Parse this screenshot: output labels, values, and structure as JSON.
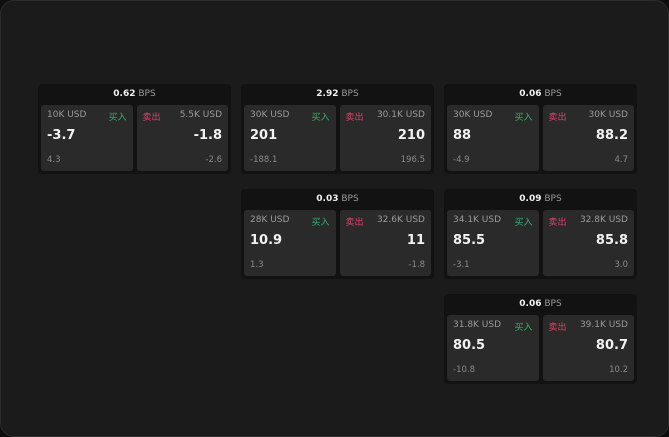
{
  "colors": {
    "buy": "#2fb36b",
    "sell": "#e0406a"
  },
  "buy_label": "买入",
  "sell_label": "卖出",
  "unit": "BPS",
  "cards": [
    {
      "spread": "0.62",
      "bid_size": "10K USD",
      "bid": "-3.7",
      "bid_chg": "4.3",
      "ask_size": "5.5K USD",
      "ask": "-1.8",
      "ask_chg": "-2.6"
    },
    {
      "spread": "2.92",
      "bid_size": "30K USD",
      "bid": "201",
      "bid_chg": "-188.1",
      "ask_size": "30.1K USD",
      "ask": "210",
      "ask_chg": "196.5"
    },
    {
      "spread": "0.06",
      "bid_size": "30K USD",
      "bid": "88",
      "bid_chg": "-4.9",
      "ask_size": "30K USD",
      "ask": "88.2",
      "ask_chg": "4.7"
    },
    {
      "spread": "0.03",
      "bid_size": "28K USD",
      "bid": "10.9",
      "bid_chg": "1.3",
      "ask_size": "32.6K USD",
      "ask": "11",
      "ask_chg": "-1.8"
    },
    {
      "spread": "0.09",
      "bid_size": "34.1K USD",
      "bid": "85.5",
      "bid_chg": "-3.1",
      "ask_size": "32.8K USD",
      "ask": "85.8",
      "ask_chg": "3.0"
    },
    {
      "spread": "0.06",
      "bid_size": "31.8K USD",
      "bid": "80.5",
      "bid_chg": "-10.8",
      "ask_size": "39.1K USD",
      "ask": "80.7",
      "ask_chg": "10.2"
    }
  ]
}
